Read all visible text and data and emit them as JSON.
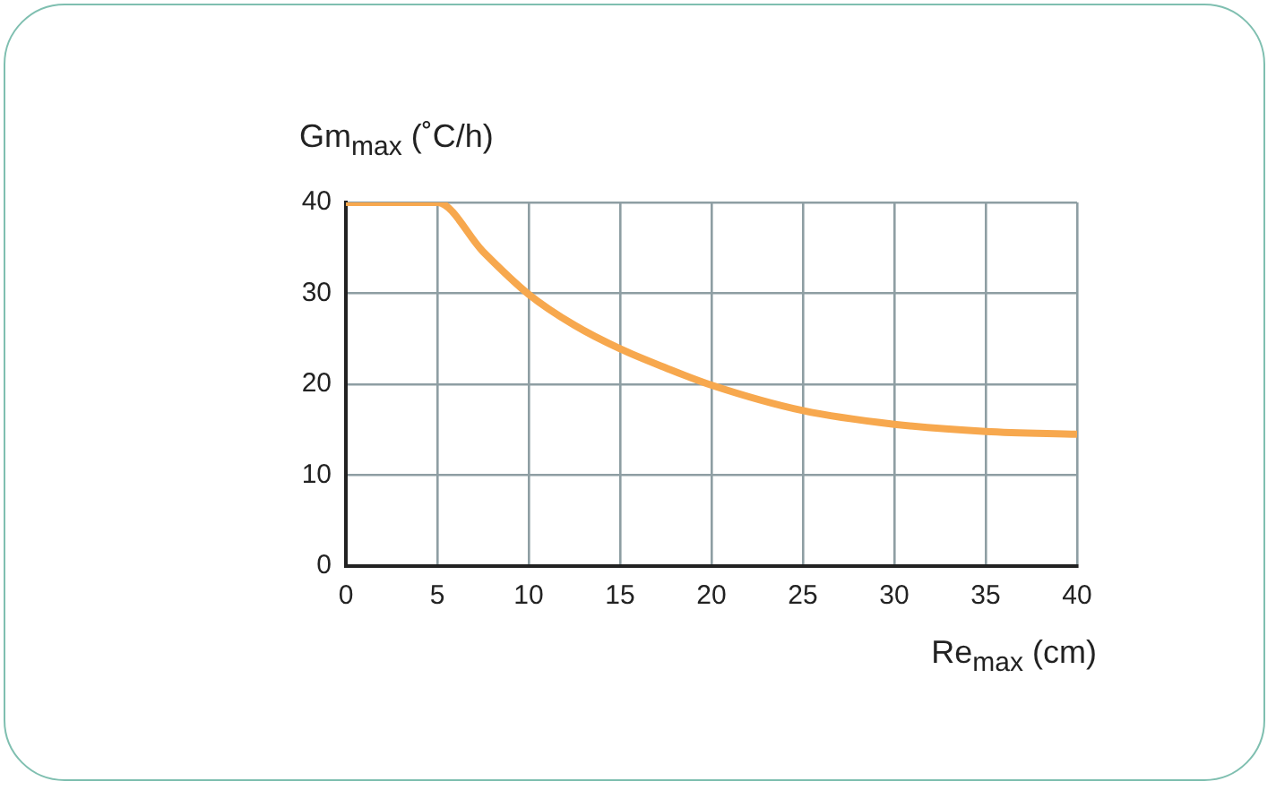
{
  "chart_data": {
    "type": "line",
    "xlabel": "Re$_{max}$ (cm)",
    "ylabel": "Gm$_{max}$ (˚C/h)",
    "x": [
      0,
      5,
      7.5,
      10,
      12.5,
      15,
      17.5,
      20,
      25,
      30,
      35,
      40
    ],
    "series": [
      {
        "color": "#f7a84e",
        "values": [
          40,
          40,
          34.6,
          29.9,
          26.5,
          23.9,
          21.8,
          19.9,
          17.1,
          15.6,
          14.8,
          14.5
        ]
      }
    ],
    "xlim": [
      0,
      40
    ],
    "xticks": [
      0,
      5,
      10,
      15,
      20,
      25,
      30,
      35,
      40
    ],
    "ylim": [
      0,
      40
    ],
    "yticks": [
      0,
      10,
      20,
      30,
      40
    ],
    "grid": true,
    "marker": "none",
    "line_style": "solid"
  }
}
